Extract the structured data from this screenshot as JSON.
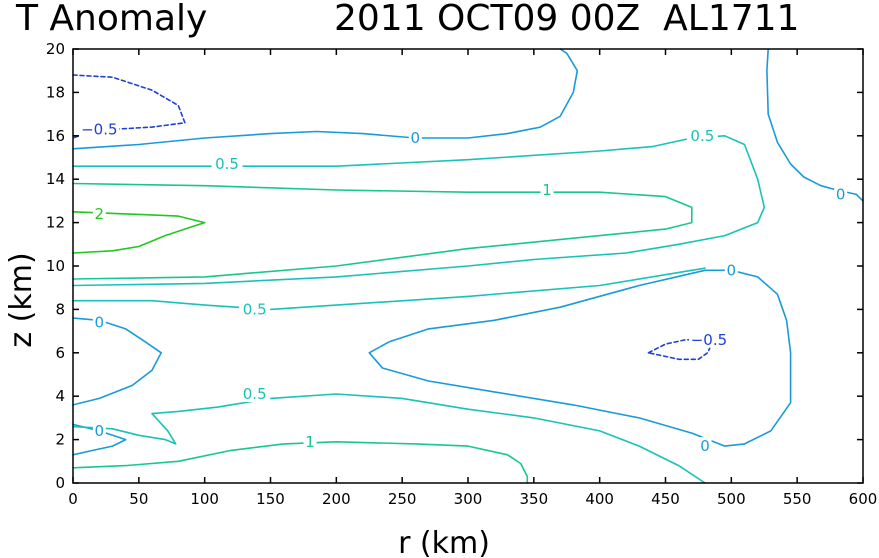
{
  "chart_data": {
    "type": "contour",
    "title": "T Anomaly",
    "subtitle": "2011 OCT09 00Z  AL1711",
    "xlabel": "r (km)",
    "ylabel": "z (km)",
    "xlim": [
      0,
      600
    ],
    "ylim": [
      0,
      20
    ],
    "x_ticks": [
      0,
      50,
      100,
      150,
      200,
      250,
      300,
      350,
      400,
      450,
      500,
      550,
      600
    ],
    "y_ticks": [
      0,
      2,
      4,
      6,
      8,
      10,
      12,
      14,
      16,
      18,
      20
    ],
    "colors": {
      "-0.5": "#1f3fd6",
      "0": "#1a9bd9",
      "0.5": "#19c2b6",
      "1": "#18c78e",
      "2": "#22c81e"
    },
    "contours": [
      {
        "level": "-0.5",
        "dashed": true,
        "points": [
          [
            0,
            18.8
          ],
          [
            30,
            18.7
          ],
          [
            60,
            18.1
          ],
          [
            80,
            17.4
          ],
          [
            85,
            16.6
          ],
          [
            60,
            16.4
          ],
          [
            30,
            16.3
          ],
          [
            10,
            16.1
          ],
          [
            0,
            15.9
          ]
        ]
      },
      {
        "level": "-0.5",
        "dashed": true,
        "points": [
          [
            437,
            6.0
          ],
          [
            450,
            6.4
          ],
          [
            465,
            6.6
          ],
          [
            480,
            6.6
          ],
          [
            485,
            6.4
          ],
          [
            482,
            6.0
          ],
          [
            475,
            5.7
          ],
          [
            460,
            5.7
          ],
          [
            445,
            5.9
          ],
          [
            437,
            6.0
          ]
        ]
      },
      {
        "level": "0",
        "dashed": false,
        "points": [
          [
            0,
            15.4
          ],
          [
            50,
            15.6
          ],
          [
            100,
            15.9
          ],
          [
            150,
            16.1
          ],
          [
            185,
            16.2
          ],
          [
            220,
            16.1
          ],
          [
            260,
            15.9
          ],
          [
            300,
            15.9
          ],
          [
            330,
            16.1
          ],
          [
            355,
            16.4
          ],
          [
            370,
            16.9
          ],
          [
            380,
            18.0
          ],
          [
            383,
            19.0
          ],
          [
            375,
            19.8
          ],
          [
            370,
            20
          ]
        ]
      },
      {
        "level": "0",
        "dashed": false,
        "points": [
          [
            528,
            20
          ],
          [
            527,
            19.0
          ],
          [
            528,
            17.0
          ],
          [
            535,
            15.7
          ],
          [
            545,
            14.7
          ],
          [
            555,
            14.1
          ],
          [
            568,
            13.7
          ],
          [
            580,
            13.5
          ],
          [
            595,
            13.3
          ],
          [
            600,
            13.0
          ]
        ]
      },
      {
        "level": "0",
        "dashed": false,
        "points": [
          [
            0,
            7.6
          ],
          [
            20,
            7.5
          ],
          [
            40,
            7.1
          ],
          [
            55,
            6.5
          ],
          [
            67,
            6.0
          ],
          [
            60,
            5.2
          ],
          [
            45,
            4.5
          ],
          [
            20,
            3.9
          ],
          [
            0,
            3.6
          ]
        ]
      },
      {
        "level": "0",
        "dashed": false,
        "points": [
          [
            0,
            2.7
          ],
          [
            20,
            2.4
          ],
          [
            35,
            2.1
          ],
          [
            40,
            2.0
          ],
          [
            30,
            1.7
          ],
          [
            15,
            1.5
          ],
          [
            0,
            1.3
          ]
        ]
      },
      {
        "level": "0",
        "dashed": false,
        "points": [
          [
            500,
            9.8
          ],
          [
            480,
            9.8
          ],
          [
            430,
            9.1
          ],
          [
            370,
            8.1
          ],
          [
            320,
            7.5
          ],
          [
            270,
            7.1
          ],
          [
            240,
            6.5
          ],
          [
            225,
            6.0
          ],
          [
            235,
            5.3
          ],
          [
            270,
            4.7
          ],
          [
            320,
            4.2
          ],
          [
            380,
            3.6
          ],
          [
            430,
            3.0
          ],
          [
            470,
            2.3
          ],
          [
            495,
            1.7
          ],
          [
            510,
            1.8
          ],
          [
            530,
            2.4
          ],
          [
            545,
            3.7
          ],
          [
            545,
            6.0
          ],
          [
            542,
            7.5
          ],
          [
            535,
            8.7
          ],
          [
            520,
            9.5
          ],
          [
            500,
            9.8
          ]
        ]
      },
      {
        "level": "0.5",
        "dashed": false,
        "points": [
          [
            0,
            14.6
          ],
          [
            100,
            14.6
          ],
          [
            200,
            14.6
          ],
          [
            300,
            14.9
          ],
          [
            400,
            15.3
          ],
          [
            440,
            15.5
          ],
          [
            470,
            15.9
          ],
          [
            495,
            16.0
          ],
          [
            510,
            15.6
          ],
          [
            520,
            14.0
          ],
          [
            525,
            12.7
          ],
          [
            520,
            12.0
          ],
          [
            495,
            11.4
          ],
          [
            460,
            11.0
          ],
          [
            420,
            10.6
          ],
          [
            350,
            10.3
          ],
          [
            300,
            10.0
          ],
          [
            200,
            9.5
          ],
          [
            100,
            9.2
          ],
          [
            0,
            9.1
          ]
        ]
      },
      {
        "level": "0.5",
        "dashed": false,
        "points": [
          [
            0,
            8.4
          ],
          [
            60,
            8.4
          ],
          [
            100,
            8.2
          ],
          [
            150,
            8.0
          ],
          [
            200,
            8.2
          ],
          [
            300,
            8.6
          ],
          [
            400,
            9.1
          ],
          [
            470,
            9.8
          ],
          [
            480,
            9.9
          ]
        ]
      },
      {
        "level": "0.5",
        "dashed": false,
        "points": [
          [
            0,
            2.6
          ],
          [
            30,
            2.5
          ],
          [
            50,
            2.2
          ],
          [
            70,
            2.0
          ],
          [
            78,
            1.8
          ],
          [
            72,
            2.4
          ],
          [
            60,
            3.2
          ],
          [
            80,
            3.3
          ],
          [
            110,
            3.5
          ],
          [
            150,
            3.9
          ],
          [
            200,
            4.1
          ],
          [
            250,
            3.9
          ],
          [
            300,
            3.4
          ],
          [
            350,
            3.0
          ],
          [
            400,
            2.4
          ],
          [
            430,
            1.7
          ],
          [
            460,
            0.8
          ],
          [
            480,
            0
          ]
        ]
      },
      {
        "level": "1",
        "dashed": false,
        "points": [
          [
            0,
            13.8
          ],
          [
            100,
            13.7
          ],
          [
            200,
            13.5
          ],
          [
            300,
            13.4
          ],
          [
            400,
            13.4
          ],
          [
            450,
            13.2
          ],
          [
            470,
            12.7
          ],
          [
            470,
            12.0
          ],
          [
            450,
            11.7
          ],
          [
            400,
            11.4
          ],
          [
            300,
            10.8
          ],
          [
            200,
            10.0
          ],
          [
            100,
            9.5
          ],
          [
            0,
            9.4
          ]
        ]
      },
      {
        "level": "1",
        "dashed": false,
        "points": [
          [
            0,
            0.7
          ],
          [
            40,
            0.8
          ],
          [
            80,
            1.0
          ],
          [
            120,
            1.5
          ],
          [
            160,
            1.8
          ],
          [
            200,
            1.9
          ],
          [
            260,
            1.8
          ],
          [
            300,
            1.7
          ],
          [
            330,
            1.3
          ],
          [
            340,
            0.9
          ],
          [
            345,
            0.3
          ],
          [
            345,
            0
          ]
        ]
      },
      {
        "level": "2",
        "dashed": false,
        "points": [
          [
            0,
            12.5
          ],
          [
            40,
            12.4
          ],
          [
            80,
            12.3
          ],
          [
            100,
            12.0
          ],
          [
            90,
            11.8
          ],
          [
            70,
            11.4
          ],
          [
            50,
            10.9
          ],
          [
            30,
            10.7
          ],
          [
            0,
            10.6
          ]
        ]
      }
    ],
    "contour_labels": [
      {
        "text": "−0.5",
        "level": "-0.5",
        "x": 20,
        "y": 16.3
      },
      {
        "text": "−0.5",
        "level": "-0.5",
        "x": 483,
        "y": 6.6
      },
      {
        "text": "0",
        "level": "0",
        "x": 260,
        "y": 15.9
      },
      {
        "text": "0",
        "level": "0",
        "x": 583,
        "y": 13.3
      },
      {
        "text": "0",
        "level": "0",
        "x": 20,
        "y": 7.4
      },
      {
        "text": "0",
        "level": "0",
        "x": 20,
        "y": 2.4
      },
      {
        "text": "0",
        "level": "0",
        "x": 500,
        "y": 9.8
      },
      {
        "text": "0",
        "level": "0",
        "x": 480,
        "y": 1.7
      },
      {
        "text": "0.5",
        "level": "0.5",
        "x": 478,
        "y": 16.0
      },
      {
        "text": "0.5",
        "level": "0.5",
        "x": 117,
        "y": 14.7
      },
      {
        "text": "0.5",
        "level": "0.5",
        "x": 138,
        "y": 8.0
      },
      {
        "text": "0.5",
        "level": "0.5",
        "x": 138,
        "y": 4.1
      },
      {
        "text": "1",
        "level": "1",
        "x": 360,
        "y": 13.5
      },
      {
        "text": "1",
        "level": "1",
        "x": 180,
        "y": 1.9
      },
      {
        "text": "2",
        "level": "2",
        "x": 20,
        "y": 12.4
      }
    ]
  }
}
